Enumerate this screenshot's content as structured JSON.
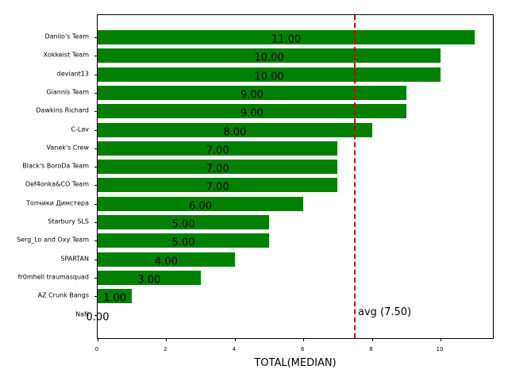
{
  "chart_data": {
    "type": "bar",
    "orientation": "horizontal",
    "title": "",
    "xlabel": "TOTAL(MEDIAN)",
    "ylabel": "",
    "xlim": [
      0,
      11.57
    ],
    "xticks": [
      0,
      2,
      4,
      6,
      8,
      10
    ],
    "grid": false,
    "bar_color": "#008000",
    "categories": [
      "Danilo's Team",
      "Xokkeist Team",
      "deviant13",
      "Giannis Team",
      "Dawkins Richard",
      "C-Lav",
      "Vanek's Crew",
      "Black's BoroDa Team",
      "Def4onka&CO Team",
      "Топчики Димстера",
      "Starbury SLS",
      "Serg_Lo and Oxy Team",
      "SPARTAN",
      "fr0mhell traumasquad",
      "AZ Crunk Bangs",
      "NaN"
    ],
    "values": [
      11,
      10,
      10,
      9,
      9,
      8,
      7,
      7,
      7,
      6,
      5,
      5,
      4,
      3,
      1,
      0
    ],
    "value_labels": [
      "11.00",
      "10.00",
      "10.00",
      "9.00",
      "9.00",
      "8.00",
      "7.00",
      "7.00",
      "7.00",
      "6.00",
      "5.00",
      "5.00",
      "4.00",
      "3.00",
      "1.00",
      "0.00"
    ],
    "annotations": [
      {
        "type": "vline",
        "x": 7.5,
        "style": "dashed",
        "color": "#d40000",
        "label": "avg (7.50)"
      }
    ]
  }
}
